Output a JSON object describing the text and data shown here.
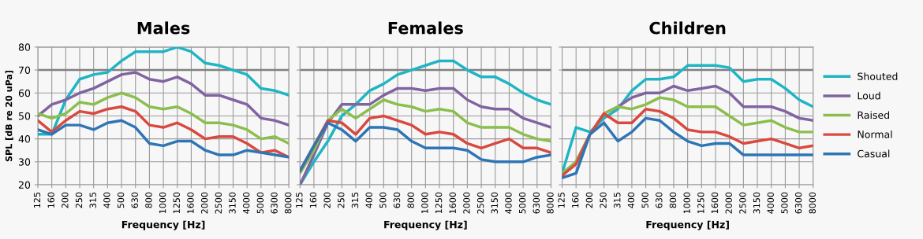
{
  "chart_data": [
    {
      "type": "line",
      "title": "Males",
      "xlabel": "Frequency [Hz]",
      "ylabel": "SPL [dB re 20 uPa]",
      "categories": [
        "125",
        "160",
        "200",
        "250",
        "315",
        "400",
        "500",
        "630",
        "800",
        "1000",
        "1250",
        "1600",
        "2000",
        "2500",
        "3150",
        "4000",
        "5000",
        "6300",
        "8000"
      ],
      "ylim": [
        20,
        80
      ],
      "yticks": [
        20,
        30,
        40,
        50,
        60,
        70,
        80
      ],
      "grid": true,
      "marker": "none",
      "line_style": "solid",
      "ref_lines": [
        {
          "axis": "y",
          "value": 70,
          "color": "#808080"
        }
      ],
      "series": [
        {
          "color": "#1fb5c4",
          "values": [
            42,
            42,
            57,
            66,
            68,
            69,
            74,
            78,
            78,
            78,
            80,
            78,
            73,
            72,
            70,
            68,
            62,
            61,
            59
          ]
        },
        {
          "color": "#8064a2",
          "values": [
            50,
            55,
            57,
            60,
            62,
            65,
            68,
            69,
            66,
            65,
            67,
            64,
            59,
            59,
            57,
            55,
            49,
            48,
            46
          ]
        },
        {
          "color": "#8cbe4d",
          "values": [
            51,
            49,
            51,
            56,
            55,
            58,
            60,
            58,
            54,
            53,
            54,
            51,
            47,
            47,
            46,
            44,
            40,
            41,
            38
          ]
        },
        {
          "color": "#d9493f",
          "values": [
            48,
            43,
            48,
            52,
            51,
            53,
            54,
            52,
            46,
            45,
            47,
            44,
            40,
            41,
            41,
            38,
            34,
            35,
            32
          ]
        },
        {
          "color": "#2e75b6",
          "values": [
            44,
            42,
            46,
            46,
            44,
            47,
            48,
            45,
            38,
            37,
            39,
            39,
            35,
            33,
            33,
            35,
            34,
            33,
            32
          ]
        }
      ]
    },
    {
      "type": "line",
      "title": "Females",
      "xlabel": "Frequency [Hz]",
      "tick_labels": "x",
      "categories": [
        "125",
        "160",
        "200",
        "250",
        "315",
        "400",
        "500",
        "630",
        "800",
        "1000",
        "1250",
        "1600",
        "2000",
        "2500",
        "3150",
        "4000",
        "5000",
        "6300",
        "8000"
      ],
      "ylim": [
        20,
        80
      ],
      "yticks": [
        20,
        30,
        40,
        50,
        60,
        70,
        80
      ],
      "grid": true,
      "marker": "none",
      "line_style": "solid",
      "ref_lines": [
        {
          "axis": "y",
          "value": 70,
          "color": "#808080"
        }
      ],
      "series": [
        {
          "color": "#1fb5c4",
          "values": [
            20,
            30,
            39,
            50,
            55,
            61,
            64,
            68,
            70,
            72,
            74,
            74,
            70,
            67,
            67,
            64,
            60,
            57,
            55
          ]
        },
        {
          "color": "#8064a2",
          "values": [
            20,
            33,
            47,
            55,
            55,
            55,
            59,
            62,
            62,
            61,
            62,
            62,
            57,
            54,
            53,
            53,
            49,
            47,
            45
          ]
        },
        {
          "color": "#8cbe4d",
          "values": [
            25,
            35,
            48,
            53,
            49,
            53,
            57,
            55,
            54,
            52,
            53,
            52,
            47,
            45,
            45,
            45,
            42,
            40,
            39
          ]
        },
        {
          "color": "#d9493f",
          "values": [
            26,
            37,
            48,
            47,
            42,
            49,
            50,
            48,
            46,
            42,
            43,
            42,
            38,
            36,
            38,
            40,
            36,
            36,
            34
          ]
        },
        {
          "color": "#2e75b6",
          "values": [
            26,
            37,
            47,
            44,
            39,
            45,
            45,
            44,
            39,
            36,
            36,
            36,
            35,
            31,
            30,
            30,
            30,
            32,
            33
          ]
        }
      ]
    },
    {
      "type": "line",
      "title": "Children",
      "xlabel": "Frequency [Hz]",
      "tick_labels": "x",
      "legend": "right",
      "categories": [
        "125",
        "160",
        "200",
        "250",
        "315",
        "400",
        "500",
        "630",
        "800",
        "1000",
        "1250",
        "1600",
        "2000",
        "2500",
        "3150",
        "4000",
        "5000",
        "6300",
        "8000"
      ],
      "ylim": [
        20,
        80
      ],
      "yticks": [
        20,
        30,
        40,
        50,
        60,
        70,
        80
      ],
      "grid": true,
      "marker": "none",
      "line_style": "solid",
      "ref_lines": [
        {
          "axis": "y",
          "value": 70,
          "color": "#808080"
        }
      ],
      "series": [
        {
          "name": "Shouted",
          "color": "#1fb5c4",
          "values": [
            25,
            45,
            43,
            49,
            53,
            61,
            66,
            66,
            67,
            72,
            72,
            72,
            71,
            65,
            66,
            66,
            62,
            57,
            54
          ]
        },
        {
          "name": "Loud",
          "color": "#8064a2",
          "values": [
            24,
            30,
            42,
            51,
            54,
            58,
            60,
            60,
            63,
            61,
            62,
            63,
            60,
            54,
            54,
            54,
            52,
            49,
            48
          ]
        },
        {
          "name": "Raised",
          "color": "#8cbe4d",
          "values": [
            25,
            30,
            42,
            51,
            54,
            53,
            55,
            58,
            57,
            54,
            54,
            54,
            50,
            46,
            47,
            48,
            45,
            43,
            43
          ]
        },
        {
          "name": "Normal",
          "color": "#d9493f",
          "values": [
            24,
            29,
            42,
            51,
            47,
            47,
            53,
            52,
            49,
            44,
            43,
            43,
            41,
            38,
            39,
            40,
            38,
            36,
            37
          ]
        },
        {
          "name": "Casual",
          "color": "#2e75b6",
          "values": [
            23,
            25,
            42,
            47,
            39,
            43,
            49,
            48,
            43,
            39,
            37,
            38,
            38,
            33,
            33,
            33,
            33,
            33,
            33
          ]
        }
      ]
    }
  ]
}
